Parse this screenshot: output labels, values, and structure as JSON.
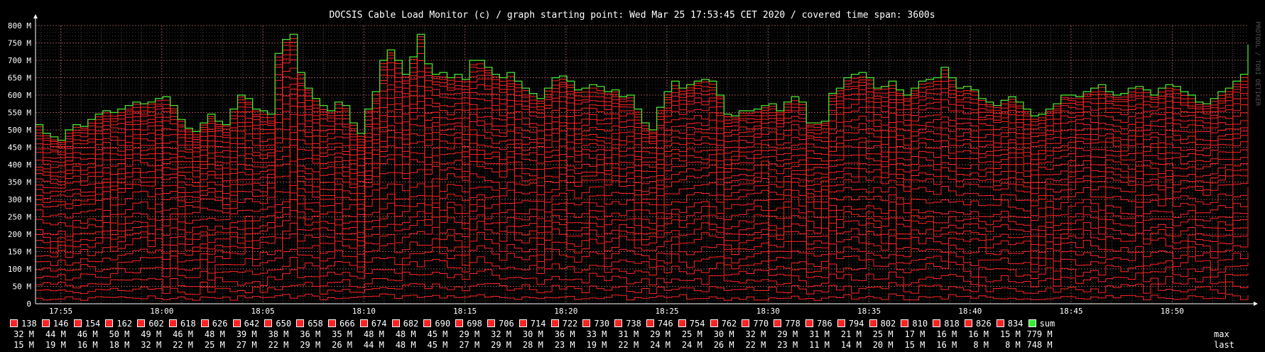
{
  "chart_data": {
    "type": "line",
    "title": "DOCSIS Cable Load Monitor (c) / graph starting point: Wed Mar 25 17:53:45 CET 2020 / covered time span: 3600s",
    "watermark": "PROTOOL / TOBI OETIKER",
    "xlabel": "",
    "ylabel": "",
    "ylim": [
      0,
      800
    ],
    "y_ticks": [
      "0",
      "50 M",
      "100 M",
      "150 M",
      "200 M",
      "250 M",
      "300 M",
      "350 M",
      "400 M",
      "450 M",
      "500 M",
      "550 M",
      "600 M",
      "650 M",
      "700 M",
      "750 M",
      "800 M"
    ],
    "x_start": "17:53:45",
    "x_span_s": 3600,
    "x_ticks": [
      "17:55",
      "18:00",
      "18:05",
      "18:10",
      "18:15",
      "18:20",
      "18:25",
      "18:30",
      "18:35",
      "18:40",
      "18:45",
      "18:50"
    ],
    "grid": true,
    "stacked": true,
    "sum_series": {
      "name": "sum",
      "color": "#33ee33",
      "values": [
        515,
        490,
        480,
        470,
        500,
        515,
        510,
        530,
        545,
        555,
        550,
        560,
        570,
        580,
        575,
        580,
        590,
        595,
        570,
        530,
        505,
        495,
        520,
        545,
        525,
        515,
        560,
        600,
        590,
        560,
        555,
        545,
        720,
        760,
        775,
        665,
        620,
        590,
        570,
        555,
        580,
        570,
        520,
        490,
        560,
        610,
        700,
        730,
        700,
        660,
        710,
        775,
        690,
        660,
        665,
        650,
        660,
        645,
        700,
        700,
        680,
        660,
        650,
        665,
        640,
        620,
        605,
        590,
        620,
        650,
        655,
        640,
        615,
        620,
        630,
        625,
        610,
        615,
        595,
        600,
        560,
        520,
        500,
        565,
        610,
        640,
        620,
        630,
        640,
        645,
        640,
        600,
        545,
        540,
        555,
        555,
        560,
        570,
        575,
        555,
        580,
        595,
        580,
        520,
        520,
        525,
        605,
        620,
        650,
        660,
        665,
        650,
        620,
        625,
        640,
        615,
        600,
        620,
        640,
        645,
        650,
        680,
        650,
        620,
        625,
        615,
        590,
        580,
        570,
        585,
        595,
        580,
        560,
        540,
        545,
        560,
        575,
        600,
        600,
        595,
        610,
        620,
        630,
        610,
        600,
        605,
        620,
        625,
        615,
        600,
        620,
        630,
        625,
        610,
        600,
        580,
        575,
        590,
        610,
        620,
        640,
        660,
        745
      ]
    },
    "series_color": "#ff2222",
    "legend": [
      {
        "name": "138",
        "max": "32 M",
        "last": "15 M"
      },
      {
        "name": "146",
        "max": "44 M",
        "last": "19 M"
      },
      {
        "name": "154",
        "max": "46 M",
        "last": "16 M"
      },
      {
        "name": "162",
        "max": "50 M",
        "last": "18 M"
      },
      {
        "name": "602",
        "max": "49 M",
        "last": "32 M"
      },
      {
        "name": "618",
        "max": "46 M",
        "last": "22 M"
      },
      {
        "name": "626",
        "max": "48 M",
        "last": "25 M"
      },
      {
        "name": "642",
        "max": "39 M",
        "last": "27 M"
      },
      {
        "name": "650",
        "max": "38 M",
        "last": "22 M"
      },
      {
        "name": "658",
        "max": "36 M",
        "last": "29 M"
      },
      {
        "name": "666",
        "max": "35 M",
        "last": "26 M"
      },
      {
        "name": "674",
        "max": "48 M",
        "last": "44 M"
      },
      {
        "name": "682",
        "max": "48 M",
        "last": "48 M"
      },
      {
        "name": "690",
        "max": "45 M",
        "last": "45 M"
      },
      {
        "name": "698",
        "max": "29 M",
        "last": "27 M"
      },
      {
        "name": "706",
        "max": "32 M",
        "last": "29 M"
      },
      {
        "name": "714",
        "max": "30 M",
        "last": "28 M"
      },
      {
        "name": "722",
        "max": "36 M",
        "last": "23 M"
      },
      {
        "name": "730",
        "max": "33 M",
        "last": "19 M"
      },
      {
        "name": "738",
        "max": "31 M",
        "last": "22 M"
      },
      {
        "name": "746",
        "max": "29 M",
        "last": "24 M"
      },
      {
        "name": "754",
        "max": "25 M",
        "last": "24 M"
      },
      {
        "name": "762",
        "max": "30 M",
        "last": "26 M"
      },
      {
        "name": "770",
        "max": "32 M",
        "last": "22 M"
      },
      {
        "name": "778",
        "max": "29 M",
        "last": "23 M"
      },
      {
        "name": "786",
        "max": "31 M",
        "last": "11 M"
      },
      {
        "name": "794",
        "max": "21 M",
        "last": "14 M"
      },
      {
        "name": "802",
        "max": "25 M",
        "last": "20 M"
      },
      {
        "name": "810",
        "max": "17 M",
        "last": "15 M"
      },
      {
        "name": "818",
        "max": "16 M",
        "last": "16 M"
      },
      {
        "name": "826",
        "max": "16 M",
        "last": "8 M"
      },
      {
        "name": "834",
        "max": "15 M",
        "last": "8 M"
      },
      {
        "name": "sum",
        "max": "779 M",
        "last": "748 M"
      }
    ],
    "legend_row_labels": {
      "max": "max",
      "last": "last"
    }
  }
}
